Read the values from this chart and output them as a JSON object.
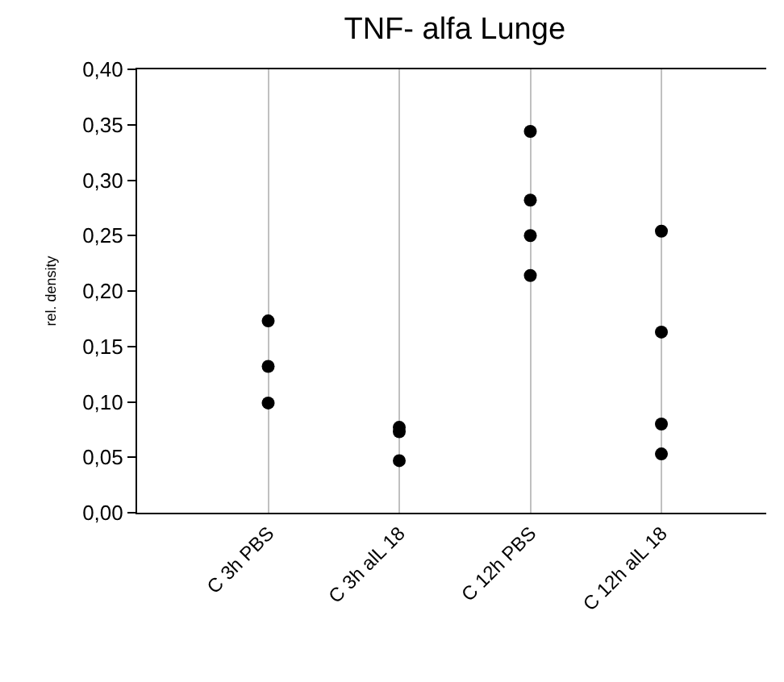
{
  "chart_data": {
    "type": "scatter",
    "title": "TNF- alfa Lunge",
    "ylabel": "rel. density",
    "categories": [
      "C 3h PBS",
      "C 3h alL 18",
      "C 12h PBS",
      "C 12h alL 18"
    ],
    "series": [
      {
        "color": "#000000",
        "x": [
          "C 3h PBS",
          "C 3h PBS",
          "C 3h PBS",
          "C 3h alL 18",
          "C 3h alL 18",
          "C 3h alL 18",
          "C 12h PBS",
          "C 12h PBS",
          "C 12h PBS",
          "C 12h PBS",
          "C 12h alL 18",
          "C 12h alL 18",
          "C 12h alL 18",
          "C 12h alL 18"
        ],
        "values": [
          0.173,
          0.132,
          0.099,
          0.077,
          0.073,
          0.047,
          0.344,
          0.282,
          0.25,
          0.214,
          0.254,
          0.163,
          0.08,
          0.053
        ]
      }
    ],
    "ylim": [
      0,
      0.4
    ],
    "yticks": [
      {
        "value": 0,
        "label": "0,00"
      },
      {
        "value": 0.05,
        "label": "0,05"
      },
      {
        "value": 0.1,
        "label": "0,10"
      },
      {
        "value": 0.15,
        "label": "0,15"
      },
      {
        "value": 0.2,
        "label": "0,20"
      },
      {
        "value": 0.25,
        "label": "0,25"
      },
      {
        "value": 0.3,
        "label": "0,30"
      },
      {
        "value": 0.35,
        "label": "0,35"
      },
      {
        "value": 0.4,
        "label": "0,40"
      }
    ],
    "grid": "x",
    "marker": "circle"
  }
}
